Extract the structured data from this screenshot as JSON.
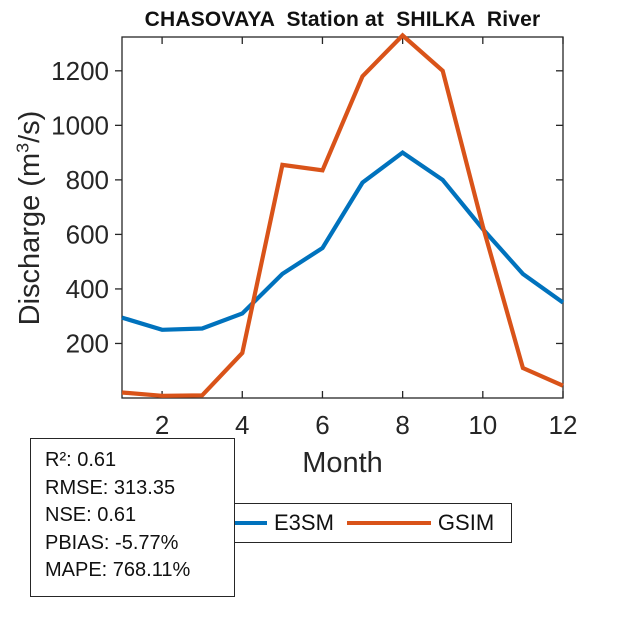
{
  "title": "CHASOVAYA  Station at  SHILKA  River",
  "chart_data": {
    "type": "line",
    "title": "CHASOVAYA  Station at  SHILKA  River",
    "xlabel": "Month",
    "ylabel": "Discharge (m3/s)",
    "x": [
      1,
      2,
      3,
      4,
      5,
      6,
      7,
      8,
      9,
      10,
      11,
      12
    ],
    "series": [
      {
        "name": "E3SM",
        "color": "#0072BD",
        "values": [
          295,
          250,
          255,
          310,
          455,
          550,
          790,
          900,
          800,
          620,
          455,
          350
        ]
      },
      {
        "name": "GSIM",
        "color": "#D95319",
        "values": [
          20,
          8,
          10,
          165,
          855,
          835,
          1180,
          1330,
          1200,
          630,
          110,
          45
        ]
      }
    ],
    "xticks": [
      2,
      4,
      6,
      8,
      10,
      12
    ],
    "yticks": [
      200,
      400,
      600,
      800,
      1000,
      1200
    ],
    "xlim": [
      1,
      12
    ],
    "ylim": [
      0,
      1324
    ],
    "grid": false,
    "legend_position": "below-axes"
  },
  "ylabel_parts": {
    "prefix": "Discharge (m",
    "sup": "3",
    "suffix": "/s)"
  },
  "stats": {
    "lines": [
      "R²: 0.61",
      "RMSE: 313.35",
      "NSE: 0.61",
      "PBIAS: -5.77%",
      "MAPE: 768.11%"
    ]
  },
  "legend": {
    "items": [
      {
        "label": "E3SM",
        "color": "#0072BD"
      },
      {
        "label": "GSIM",
        "color": "#D95319"
      }
    ]
  },
  "colors": {
    "axis": "#262626",
    "background": "#ffffff"
  }
}
